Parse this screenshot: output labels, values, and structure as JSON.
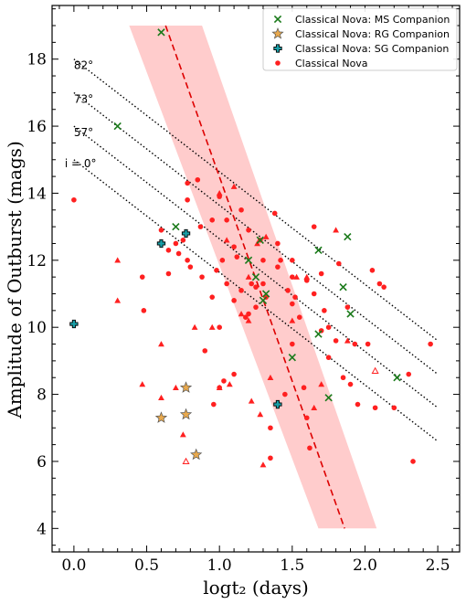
{
  "chart_data": {
    "type": "scatter",
    "xlabel": "logt₂ (days)",
    "ylabel": "Amplitude of Outburst (mags)",
    "xlim": [
      -0.15,
      2.65
    ],
    "ylim": [
      3.3,
      19.6
    ],
    "xticks": [
      0.0,
      0.5,
      1.0,
      1.5,
      2.0,
      2.5
    ],
    "xtick_labels": [
      "0.0",
      "0.5",
      "1.0",
      "1.5",
      "2.0",
      "2.5"
    ],
    "yticks": [
      4,
      6,
      8,
      10,
      12,
      14,
      16,
      18
    ],
    "ytick_labels": [
      "4",
      "6",
      "8",
      "10",
      "12",
      "14",
      "16",
      "18"
    ],
    "legend_position": "top-right",
    "legend": [
      {
        "label": "Classical Nova: MS Companion",
        "marker": "x",
        "color": "#1a7a1a"
      },
      {
        "label": "Classical Nova: RG Companion",
        "marker": "star",
        "color": "#e9a94d"
      },
      {
        "label": "Classical Nova: SG Companion",
        "marker": "plus",
        "color": "#1aa0a8"
      },
      {
        "label": "Classical Nova",
        "marker": "circle",
        "color": "#ff2020"
      }
    ],
    "series": [
      {
        "name": "Classical Nova: MS Companion",
        "marker": "x",
        "color": "#1a7a1a",
        "points": [
          [
            0.6,
            18.8
          ],
          [
            0.3,
            16.0
          ],
          [
            0.7,
            13.0
          ],
          [
            1.28,
            12.6
          ],
          [
            1.2,
            12.0
          ],
          [
            1.25,
            11.5
          ],
          [
            1.3,
            10.8
          ],
          [
            1.32,
            11.0
          ],
          [
            1.68,
            12.3
          ],
          [
            1.88,
            12.7
          ],
          [
            1.85,
            11.2
          ],
          [
            1.9,
            10.4
          ],
          [
            1.68,
            9.8
          ],
          [
            1.5,
            9.1
          ],
          [
            1.75,
            7.9
          ],
          [
            2.22,
            8.5
          ]
        ]
      },
      {
        "name": "Classical Nova: RG Companion",
        "marker": "star",
        "color": "#e9a94d",
        "points": [
          [
            0.6,
            7.3
          ],
          [
            0.77,
            8.2
          ],
          [
            0.77,
            7.4
          ],
          [
            0.84,
            6.2
          ]
        ]
      },
      {
        "name": "Classical Nova: SG Companion",
        "marker": "plus",
        "color": "#1aa0a8",
        "points": [
          [
            0.0,
            10.1
          ],
          [
            0.6,
            12.5
          ],
          [
            0.77,
            12.8
          ],
          [
            1.4,
            7.7
          ]
        ]
      },
      {
        "name": "Classical Nova",
        "marker": "circle",
        "color": "#ff2020",
        "points": [
          [
            0.0,
            13.8
          ],
          [
            0.47,
            11.5
          ],
          [
            0.48,
            10.5
          ],
          [
            0.6,
            12.9
          ],
          [
            0.65,
            12.3
          ],
          [
            0.65,
            11.6
          ],
          [
            0.7,
            12.5
          ],
          [
            0.72,
            12.2
          ],
          [
            0.75,
            12.6
          ],
          [
            0.78,
            14.3
          ],
          [
            0.78,
            13.8
          ],
          [
            0.78,
            12.0
          ],
          [
            0.8,
            11.8
          ],
          [
            0.85,
            14.4
          ],
          [
            0.87,
            13.0
          ],
          [
            0.88,
            11.5
          ],
          [
            0.9,
            9.3
          ],
          [
            0.95,
            13.2
          ],
          [
            0.95,
            10.9
          ],
          [
            0.96,
            7.7
          ],
          [
            0.98,
            11.7
          ],
          [
            1.0,
            13.9
          ],
          [
            1.0,
            10.0
          ],
          [
            1.0,
            8.2
          ],
          [
            1.02,
            12.0
          ],
          [
            1.05,
            13.2
          ],
          [
            1.05,
            11.3
          ],
          [
            1.03,
            8.4
          ],
          [
            1.1,
            12.4
          ],
          [
            1.12,
            12.1
          ],
          [
            1.1,
            10.8
          ],
          [
            1.1,
            8.6
          ],
          [
            1.15,
            13.5
          ],
          [
            1.15,
            11.1
          ],
          [
            1.18,
            10.3
          ],
          [
            1.2,
            12.9
          ],
          [
            1.2,
            10.4
          ],
          [
            1.22,
            11.3
          ],
          [
            1.25,
            11.2
          ],
          [
            1.25,
            10.6
          ],
          [
            1.28,
            12.6
          ],
          [
            1.3,
            12.0
          ],
          [
            1.3,
            11.3
          ],
          [
            1.32,
            10.9
          ],
          [
            1.35,
            7.0
          ],
          [
            1.35,
            6.1
          ],
          [
            1.38,
            13.4
          ],
          [
            1.4,
            12.5
          ],
          [
            1.4,
            11.8
          ],
          [
            1.42,
            12.0
          ],
          [
            1.45,
            8.0
          ],
          [
            1.47,
            11.1
          ],
          [
            1.5,
            12.0
          ],
          [
            1.5,
            11.5
          ],
          [
            1.5,
            10.7
          ],
          [
            1.5,
            9.5
          ],
          [
            1.52,
            10.9
          ],
          [
            1.55,
            10.3
          ],
          [
            1.58,
            8.2
          ],
          [
            1.6,
            11.4
          ],
          [
            1.6,
            7.3
          ],
          [
            1.62,
            6.4
          ],
          [
            1.65,
            13.0
          ],
          [
            1.65,
            11.0
          ],
          [
            1.7,
            11.6
          ],
          [
            1.7,
            9.9
          ],
          [
            1.72,
            10.5
          ],
          [
            1.75,
            10.0
          ],
          [
            1.75,
            9.1
          ],
          [
            1.8,
            9.6
          ],
          [
            1.82,
            11.9
          ],
          [
            1.85,
            8.5
          ],
          [
            1.88,
            10.6
          ],
          [
            1.9,
            8.3
          ],
          [
            1.93,
            9.5
          ],
          [
            1.95,
            7.7
          ],
          [
            2.02,
            9.5
          ],
          [
            2.05,
            11.7
          ],
          [
            2.07,
            7.6
          ],
          [
            2.1,
            11.3
          ],
          [
            2.13,
            11.2
          ],
          [
            2.2,
            7.6
          ],
          [
            2.3,
            8.6
          ],
          [
            2.33,
            6.0
          ],
          [
            2.45,
            9.5
          ]
        ]
      },
      {
        "name": "",
        "marker": "triangle",
        "color": "#ff2020",
        "points": [
          [
            0.3,
            12.0
          ],
          [
            0.3,
            10.8
          ],
          [
            0.47,
            8.3
          ],
          [
            0.6,
            9.5
          ],
          [
            0.6,
            7.9
          ],
          [
            0.7,
            8.2
          ],
          [
            0.75,
            6.8
          ],
          [
            0.83,
            10.0
          ],
          [
            0.95,
            10.0
          ],
          [
            1.0,
            14.0
          ],
          [
            1.0,
            8.2
          ],
          [
            1.05,
            12.6
          ],
          [
            1.07,
            8.3
          ],
          [
            1.1,
            14.2
          ],
          [
            1.15,
            10.4
          ],
          [
            1.2,
            11.5
          ],
          [
            1.2,
            10.2
          ],
          [
            1.22,
            7.8
          ],
          [
            1.26,
            12.5
          ],
          [
            1.28,
            7.4
          ],
          [
            1.3,
            5.9
          ],
          [
            1.32,
            12.7
          ],
          [
            1.35,
            8.5
          ],
          [
            1.5,
            10.2
          ],
          [
            1.53,
            11.5
          ],
          [
            1.6,
            11.5
          ],
          [
            1.65,
            7.6
          ],
          [
            1.7,
            8.3
          ],
          [
            1.8,
            12.9
          ],
          [
            1.88,
            9.6
          ]
        ]
      },
      {
        "name": "",
        "marker": "open-triangle",
        "color": "#ff2020",
        "points": [
          [
            0.77,
            6.0
          ],
          [
            2.07,
            8.7
          ]
        ]
      }
    ],
    "fit": {
      "points": [
        [
          0.63,
          19.0
        ],
        [
          1.86,
          4.0
        ]
      ],
      "style": "dashed",
      "color": "#dd0000"
    },
    "fit_band": {
      "top": [
        [
          0.38,
          19.0
        ],
        [
          0.88,
          19.0
        ]
      ],
      "bottom": [
        [
          1.68,
          4.0
        ],
        [
          2.08,
          4.0
        ]
      ],
      "color": "#ff9999"
    },
    "inclination_lines": [
      {
        "label": "i = 0°",
        "start": [
          0.0,
          15.0
        ],
        "end": [
          2.5,
          6.6
        ]
      },
      {
        "label": "57°",
        "start": [
          0.0,
          16.0
        ],
        "end": [
          2.5,
          7.6
        ]
      },
      {
        "label": "73°",
        "start": [
          0.0,
          17.0
        ],
        "end": [
          2.5,
          8.6
        ]
      },
      {
        "label": "82°",
        "start": [
          0.0,
          18.0
        ],
        "end": [
          2.5,
          9.6
        ]
      }
    ]
  }
}
